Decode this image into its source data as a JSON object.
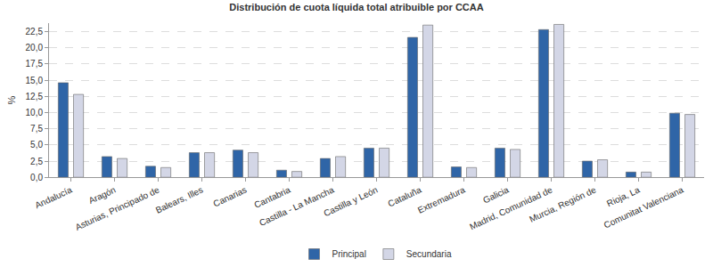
{
  "chart_data": {
    "type": "bar",
    "title": "Distribución de cuota líquida total atribuible por CCAA",
    "y_label": "%",
    "categories": [
      "Andalucía",
      "Aragón",
      "Asturias, Principado de",
      "Balears, Illes",
      "Canarias",
      "Cantabria",
      "Castilla - La Mancha",
      "Castilla y León",
      "Cataluña",
      "Extremadura",
      "Galicia",
      "Madrid, Comunidad de",
      "Murcia, Región de",
      "Rioja, La",
      "Comunitat Valenciana"
    ],
    "series": [
      {
        "name": "Principal",
        "color": "#2f65a7",
        "values": [
          14.6,
          3.2,
          1.7,
          3.8,
          4.2,
          1.1,
          2.9,
          4.5,
          21.6,
          1.6,
          4.5,
          22.8,
          2.5,
          0.8,
          9.9
        ]
      },
      {
        "name": "Secundaria",
        "color": "#d3d6e6",
        "values": [
          12.8,
          2.9,
          1.5,
          3.8,
          3.8,
          0.9,
          3.2,
          4.5,
          23.5,
          1.5,
          4.3,
          23.6,
          2.7,
          0.8,
          9.7
        ]
      }
    ],
    "ylim": [
      0,
      23.8
    ],
    "yticks": [
      {
        "value": 0,
        "label": "0,0"
      },
      {
        "value": 2.5,
        "label": "2,5"
      },
      {
        "value": 5,
        "label": "5,0"
      },
      {
        "value": 7.5,
        "label": "7,5"
      },
      {
        "value": 10,
        "label": "10,0"
      },
      {
        "value": 12.5,
        "label": "12,5"
      },
      {
        "value": 15,
        "label": "15,0"
      },
      {
        "value": 17.5,
        "label": "17,5"
      },
      {
        "value": 20,
        "label": "20,0"
      },
      {
        "value": 22.5,
        "label": "22,5"
      }
    ],
    "grid": true,
    "legend": "bottom"
  }
}
